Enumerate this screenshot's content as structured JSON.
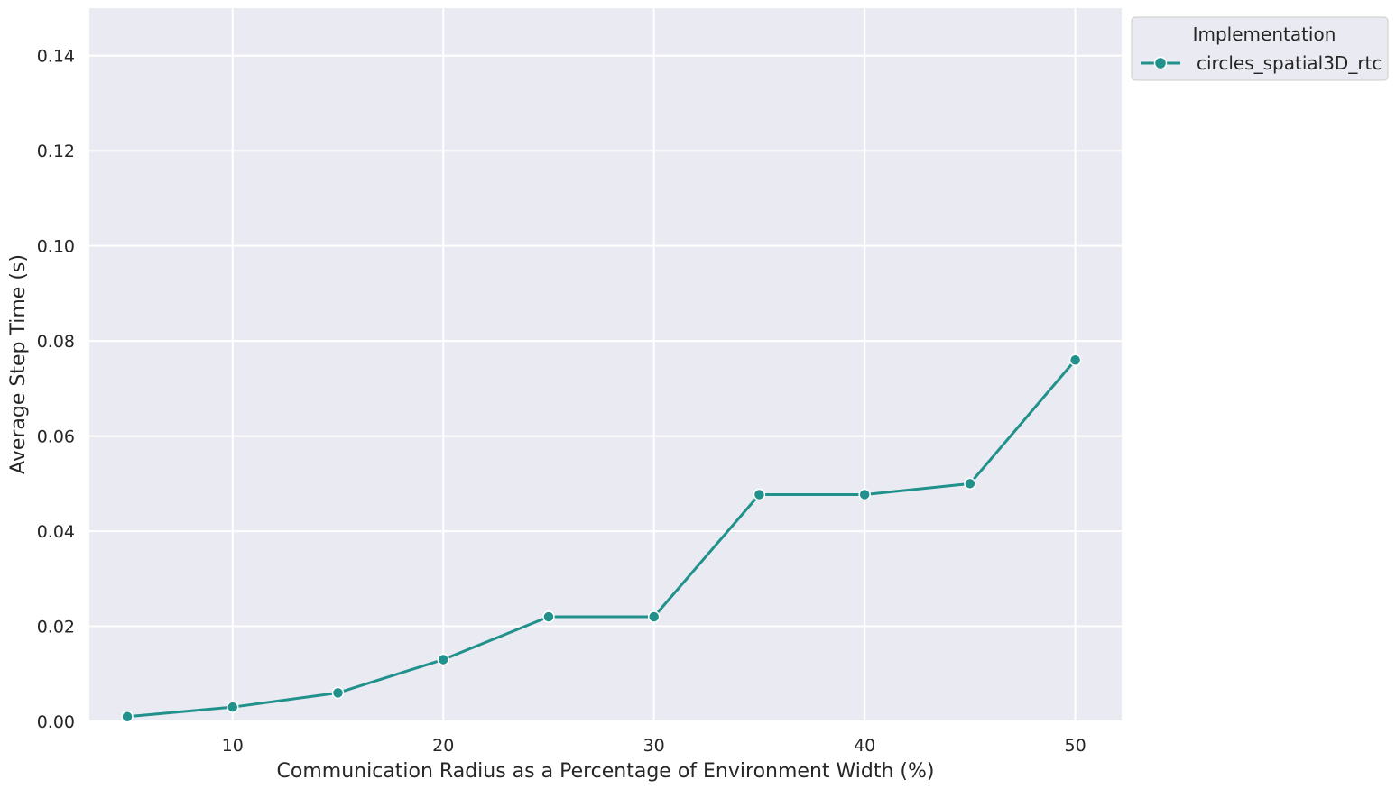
{
  "chart_data": {
    "type": "line",
    "xlabel": "Communication Radius as a Percentage of Environment Width (%)",
    "ylabel": "Average Step Time (s)",
    "xlim": [
      3.2,
      52.2
    ],
    "ylim": [
      0,
      0.15
    ],
    "x_ticks": [
      10,
      20,
      30,
      40,
      50
    ],
    "x_tick_labels": [
      "10",
      "20",
      "30",
      "40",
      "50"
    ],
    "y_ticks": [
      0,
      0.02,
      0.04,
      0.06,
      0.08,
      0.1,
      0.12,
      0.14
    ],
    "y_tick_labels": [
      "0.00",
      "0.02",
      "0.04",
      "0.06",
      "0.08",
      "0.10",
      "0.12",
      "0.14"
    ],
    "grid": true,
    "legend": {
      "title": "Implementation",
      "placement": "outside-upper-right"
    },
    "series": [
      {
        "name": "circles_spatial3D_rtc",
        "color": "#21918c",
        "marker": "circle",
        "x": [
          5,
          10,
          15,
          20,
          25,
          30,
          35,
          40,
          45,
          50
        ],
        "y": [
          0.001,
          0.003,
          0.006,
          0.013,
          0.022,
          0.022,
          0.0477,
          0.0477,
          0.05,
          0.076
        ]
      }
    ],
    "colors": {
      "plot_background": "#eaeaf2",
      "grid": "#ffffff",
      "text": "#262626"
    }
  }
}
